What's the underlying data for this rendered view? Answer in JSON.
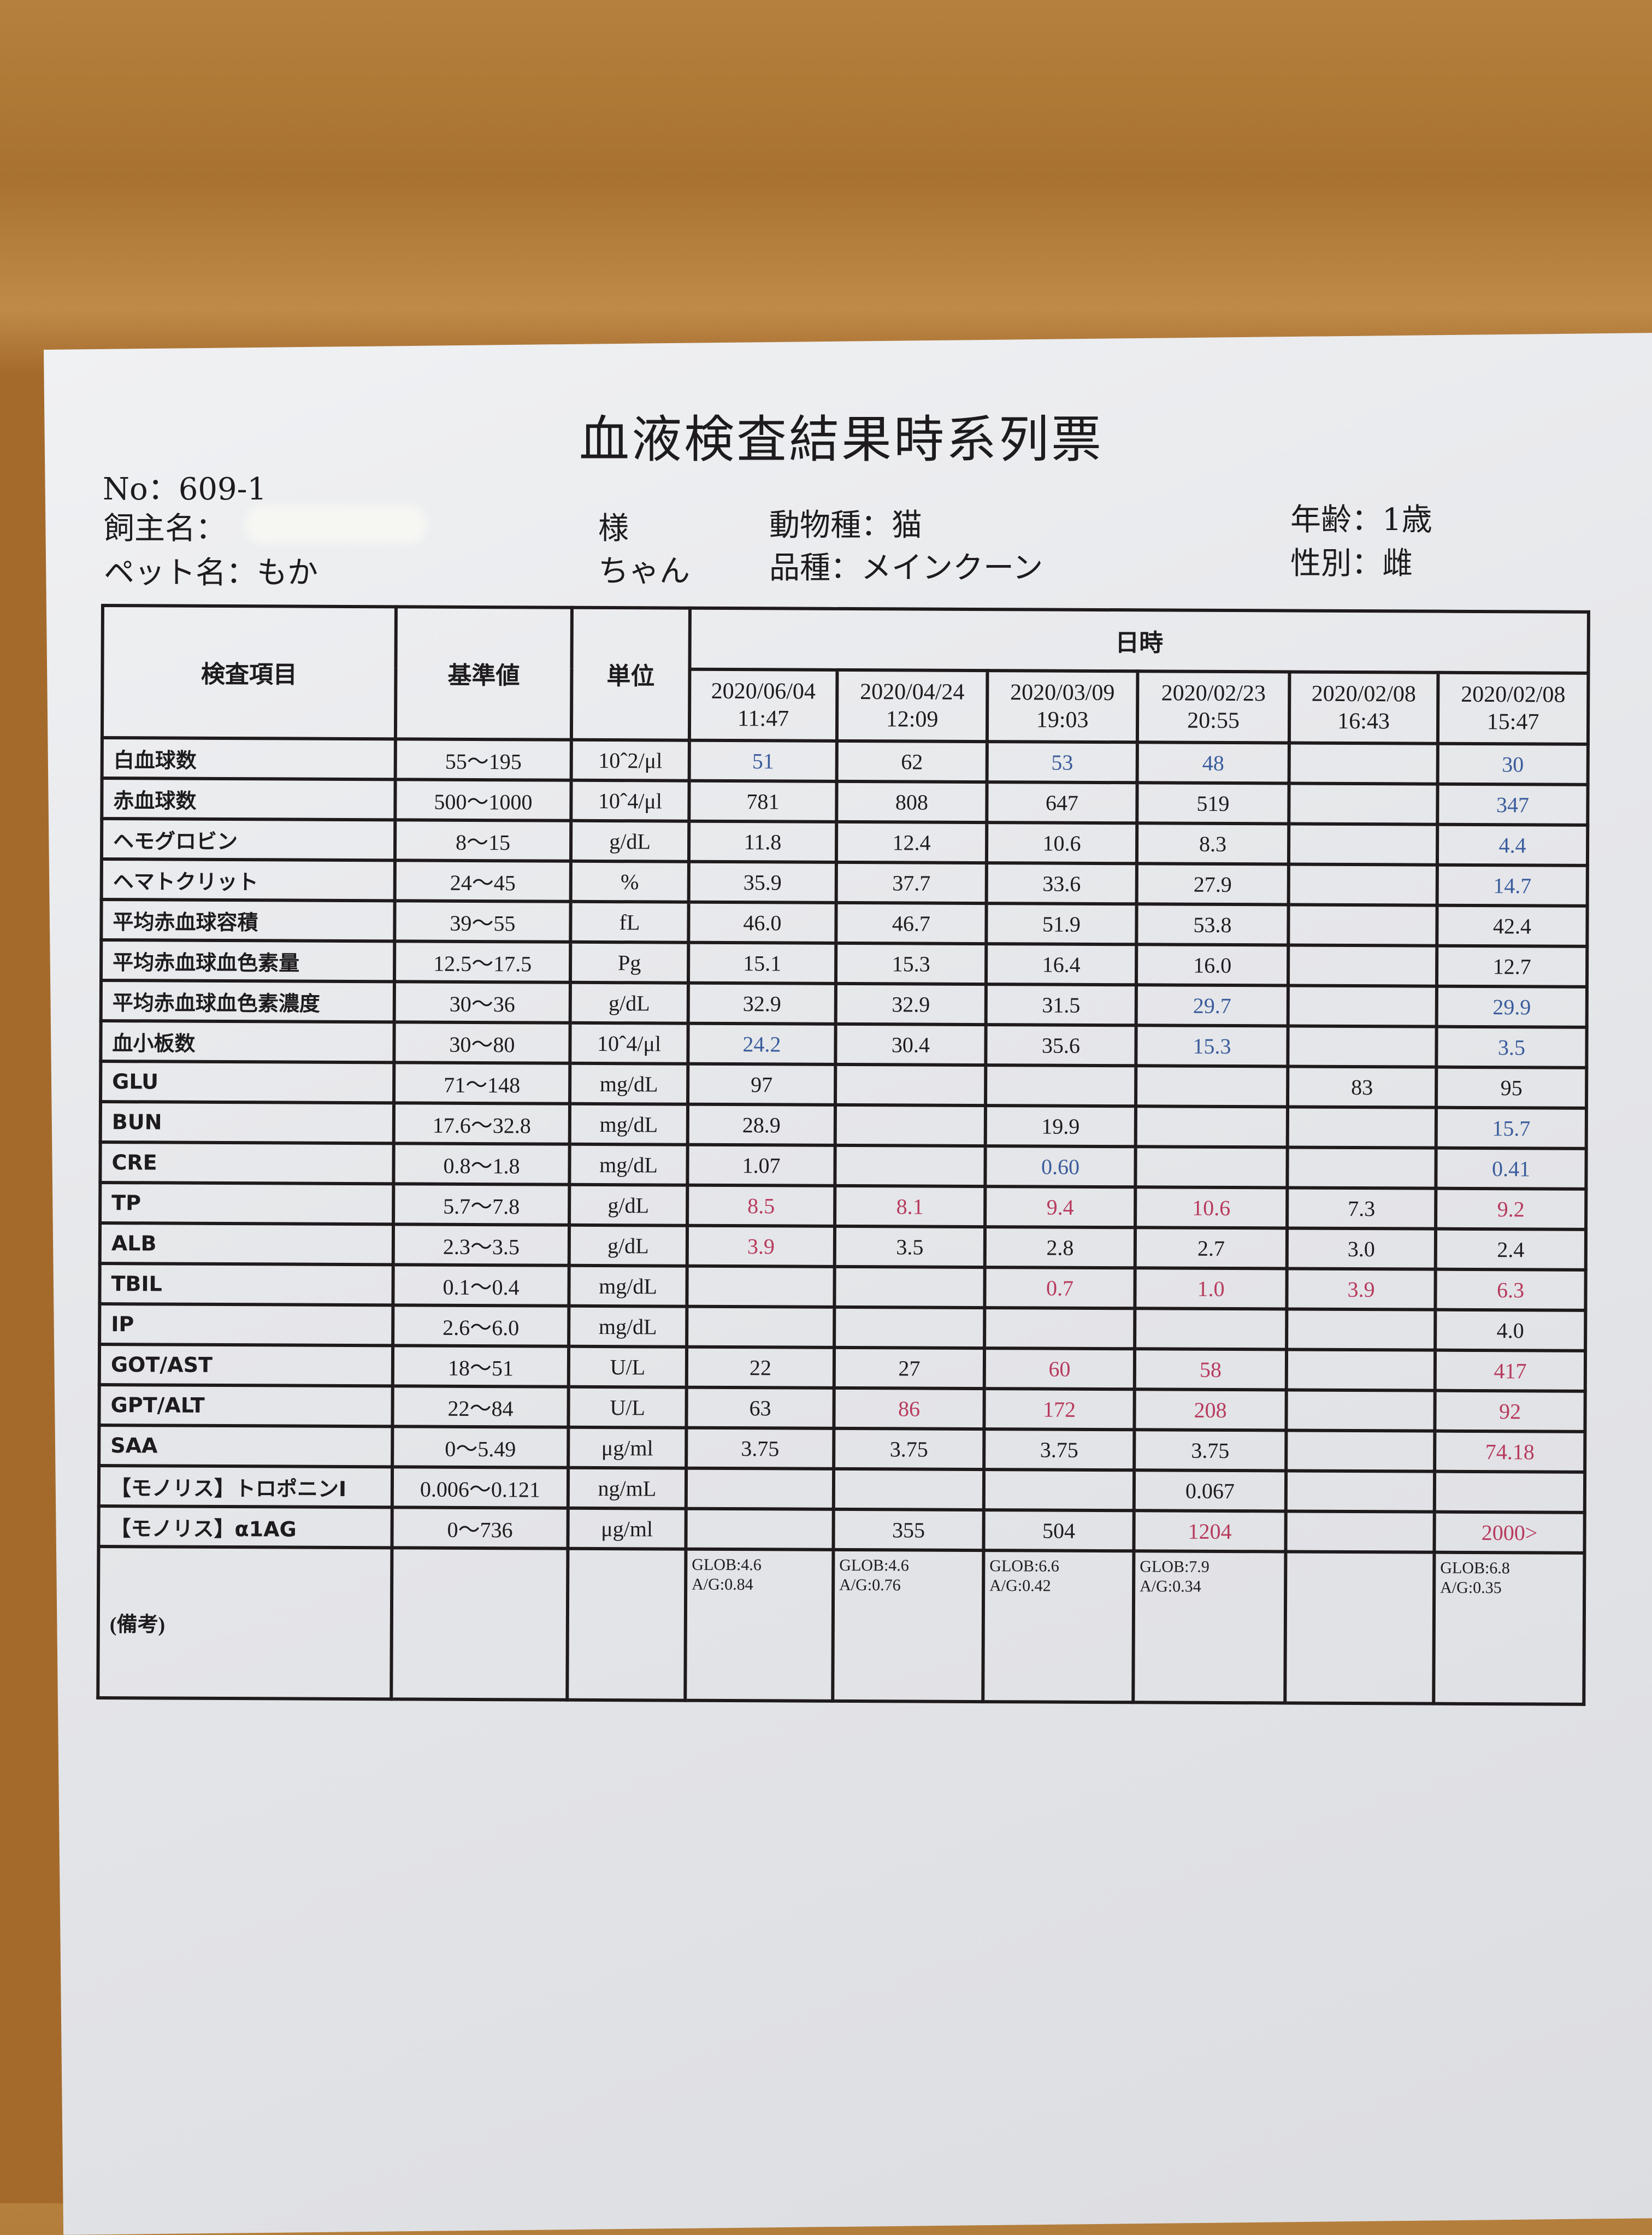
{
  "title": "血液検査結果時系列票",
  "header": {
    "no": "No：609-1",
    "owner_label": "飼主名：",
    "owner_suffix": "様",
    "pet_label": "ペット名：もか",
    "pet_suffix": "ちゃん",
    "species": "動物種：猫",
    "breed": "品種：メインクーン",
    "age": "年齢：1歳",
    "sex": "性別：雌"
  },
  "colors": {
    "low": "#3a5c9c",
    "high": "#b73a5d"
  },
  "table": {
    "col_item": "検査項目",
    "col_ref": "基準値",
    "col_unit": "単位",
    "col_datetime": "日時",
    "dates": [
      {
        "date": "2020/06/04",
        "time": "11:47"
      },
      {
        "date": "2020/04/24",
        "time": "12:09"
      },
      {
        "date": "2020/03/09",
        "time": "19:03"
      },
      {
        "date": "2020/02/23",
        "time": "20:55"
      },
      {
        "date": "2020/02/08",
        "time": "16:43"
      },
      {
        "date": "2020/02/08",
        "time": "15:47"
      }
    ],
    "rows": [
      {
        "item": "白血球数",
        "ref": "55〜195",
        "unit": "10ˆ2/μl",
        "values": [
          "51",
          "62",
          "53",
          "48",
          "",
          "30"
        ],
        "flags": [
          "L",
          "",
          "L",
          "L",
          "",
          "L"
        ]
      },
      {
        "item": "赤血球数",
        "ref": "500〜1000",
        "unit": "10ˆ4/μl",
        "values": [
          "781",
          "808",
          "647",
          "519",
          "",
          "347"
        ],
        "flags": [
          "",
          "",
          "",
          "",
          "",
          "L"
        ]
      },
      {
        "item": "ヘモグロビン",
        "ref": "8〜15",
        "unit": "g/dL",
        "values": [
          "11.8",
          "12.4",
          "10.6",
          "8.3",
          "",
          "4.4"
        ],
        "flags": [
          "",
          "",
          "",
          "",
          "",
          "L"
        ]
      },
      {
        "item": "ヘマトクリット",
        "ref": "24〜45",
        "unit": "%",
        "values": [
          "35.9",
          "37.7",
          "33.6",
          "27.9",
          "",
          "14.7"
        ],
        "flags": [
          "",
          "",
          "",
          "",
          "",
          "L"
        ]
      },
      {
        "item": "平均赤血球容積",
        "ref": "39〜55",
        "unit": "fL",
        "values": [
          "46.0",
          "46.7",
          "51.9",
          "53.8",
          "",
          "42.4"
        ],
        "flags": [
          "",
          "",
          "",
          "",
          "",
          ""
        ]
      },
      {
        "item": "平均赤血球血色素量",
        "ref": "12.5〜17.5",
        "unit": "Pg",
        "values": [
          "15.1",
          "15.3",
          "16.4",
          "16.0",
          "",
          "12.7"
        ],
        "flags": [
          "",
          "",
          "",
          "",
          "",
          ""
        ]
      },
      {
        "item": "平均赤血球血色素濃度",
        "ref": "30〜36",
        "unit": "g/dL",
        "values": [
          "32.9",
          "32.9",
          "31.5",
          "29.7",
          "",
          "29.9"
        ],
        "flags": [
          "",
          "",
          "",
          "L",
          "",
          "L"
        ]
      },
      {
        "item": "血小板数",
        "ref": "30〜80",
        "unit": "10ˆ4/μl",
        "values": [
          "24.2",
          "30.4",
          "35.6",
          "15.3",
          "",
          "3.5"
        ],
        "flags": [
          "L",
          "",
          "",
          "L",
          "",
          "L"
        ]
      },
      {
        "item": "GLU",
        "ref": "71〜148",
        "unit": "mg/dL",
        "values": [
          "97",
          "",
          "",
          "",
          "83",
          "95"
        ],
        "flags": [
          "",
          "",
          "",
          "",
          "",
          ""
        ]
      },
      {
        "item": "BUN",
        "ref": "17.6〜32.8",
        "unit": "mg/dL",
        "values": [
          "28.9",
          "",
          "19.9",
          "",
          "",
          "15.7"
        ],
        "flags": [
          "",
          "",
          "",
          "",
          "",
          "L"
        ]
      },
      {
        "item": "CRE",
        "ref": "0.8〜1.8",
        "unit": "mg/dL",
        "values": [
          "1.07",
          "",
          "0.60",
          "",
          "",
          "0.41"
        ],
        "flags": [
          "",
          "",
          "L",
          "",
          "",
          "L"
        ]
      },
      {
        "item": "TP",
        "ref": "5.7〜7.8",
        "unit": "g/dL",
        "values": [
          "8.5",
          "8.1",
          "9.4",
          "10.6",
          "7.3",
          "9.2"
        ],
        "flags": [
          "H",
          "H",
          "H",
          "H",
          "",
          "H"
        ]
      },
      {
        "item": "ALB",
        "ref": "2.3〜3.5",
        "unit": "g/dL",
        "values": [
          "3.9",
          "3.5",
          "2.8",
          "2.7",
          "3.0",
          "2.4"
        ],
        "flags": [
          "H",
          "",
          "",
          "",
          "",
          ""
        ]
      },
      {
        "item": "TBIL",
        "ref": "0.1〜0.4",
        "unit": "mg/dL",
        "values": [
          "",
          "",
          "0.7",
          "1.0",
          "3.9",
          "6.3"
        ],
        "flags": [
          "",
          "",
          "H",
          "H",
          "H",
          "H"
        ]
      },
      {
        "item": "IP",
        "ref": "2.6〜6.0",
        "unit": "mg/dL",
        "values": [
          "",
          "",
          "",
          "",
          "",
          "4.0"
        ],
        "flags": [
          "",
          "",
          "",
          "",
          "",
          ""
        ]
      },
      {
        "item": "GOT/AST",
        "ref": "18〜51",
        "unit": "U/L",
        "values": [
          "22",
          "27",
          "60",
          "58",
          "",
          "417"
        ],
        "flags": [
          "",
          "",
          "H",
          "H",
          "",
          "H"
        ]
      },
      {
        "item": "GPT/ALT",
        "ref": "22〜84",
        "unit": "U/L",
        "values": [
          "63",
          "86",
          "172",
          "208",
          "",
          "92"
        ],
        "flags": [
          "",
          "H",
          "H",
          "H",
          "",
          "H"
        ]
      },
      {
        "item": "SAA",
        "ref": "0〜5.49",
        "unit": "μg/ml",
        "values": [
          "3.75",
          "3.75",
          "3.75",
          "3.75",
          "",
          "74.18"
        ],
        "flags": [
          "",
          "",
          "",
          "",
          "",
          "H"
        ]
      },
      {
        "item": "【モノリス】トロポニンI",
        "ref": "0.006〜0.121",
        "unit": "ng/mL",
        "values": [
          "",
          "",
          "",
          "0.067",
          "",
          ""
        ],
        "flags": [
          "",
          "",
          "",
          "",
          "",
          ""
        ]
      },
      {
        "item": "【モノリス】α1AG",
        "ref": "0〜736",
        "unit": "μg/ml",
        "values": [
          "",
          "355",
          "504",
          "1204",
          "",
          "2000>"
        ],
        "flags": [
          "",
          "",
          "",
          "H",
          "",
          "H"
        ]
      }
    ],
    "remarks_label": "(備考)",
    "remarks": [
      "GLOB:4.6\nA/G:0.84",
      "GLOB:4.6\nA/G:0.76",
      "GLOB:6.6\nA/G:0.42",
      "GLOB:7.9\nA/G:0.34",
      "",
      "GLOB:6.8\nA/G:0.35"
    ]
  }
}
